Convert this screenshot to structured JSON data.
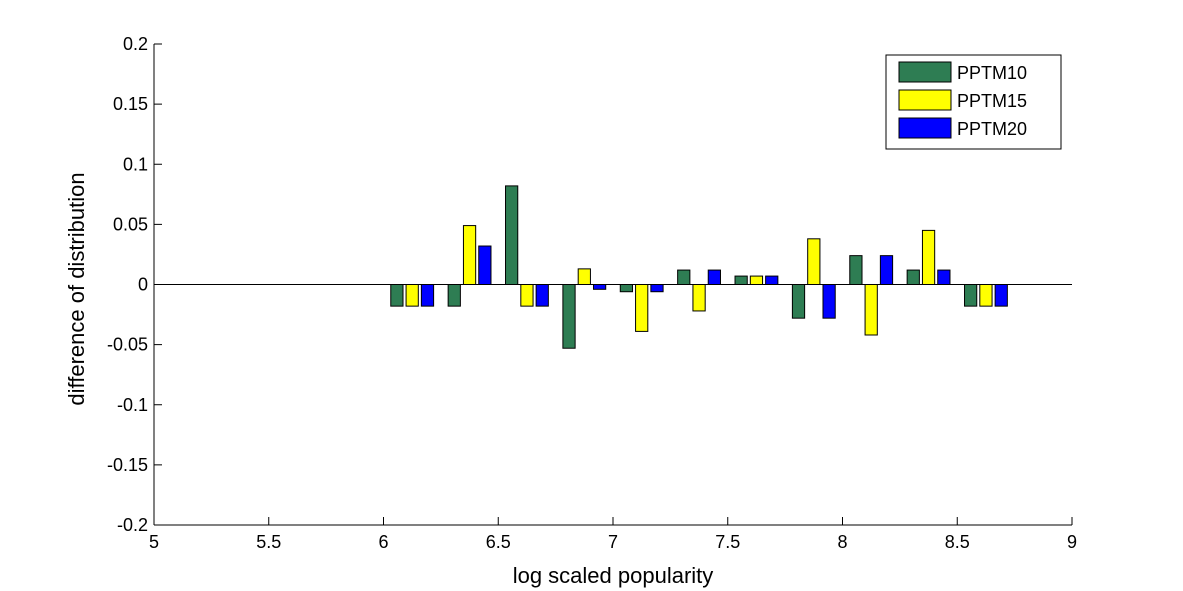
{
  "chart_data": {
    "type": "bar",
    "title": "",
    "xlabel": "log scaled popularity",
    "ylabel": "difference of distribution",
    "xlim": [
      5,
      9
    ],
    "ylim": [
      -0.2,
      0.2
    ],
    "xticks": [
      "5",
      "5.5",
      "6",
      "6.5",
      "7",
      "7.5",
      "8",
      "8.5",
      "9"
    ],
    "yticks": [
      "-0.2",
      "-0.15",
      "-0.1",
      "-0.05",
      "0",
      "0.05",
      "0.1",
      "0.15",
      "0.2"
    ],
    "x": [
      6.125,
      6.375,
      6.625,
      6.875,
      7.125,
      7.375,
      7.625,
      7.875,
      8.125,
      8.375,
      8.625
    ],
    "group_width": 0.2,
    "baseline": 0,
    "grid": false,
    "legend_position": "top-right",
    "series": [
      {
        "name": "PPTM10",
        "color": "#2e7d53",
        "values": [
          -0.018,
          -0.018,
          0.082,
          -0.053,
          -0.006,
          0.012,
          0.007,
          -0.028,
          0.024,
          0.012,
          -0.018
        ]
      },
      {
        "name": "PPTM15",
        "color": "#ffff00",
        "values": [
          -0.018,
          0.049,
          -0.018,
          0.013,
          -0.039,
          -0.022,
          0.007,
          0.038,
          -0.042,
          0.045,
          -0.018
        ]
      },
      {
        "name": "PPTM20",
        "color": "#0000ff",
        "values": [
          -0.018,
          0.032,
          -0.018,
          -0.004,
          -0.006,
          0.012,
          0.007,
          -0.028,
          0.024,
          0.012,
          -0.018
        ]
      }
    ]
  }
}
